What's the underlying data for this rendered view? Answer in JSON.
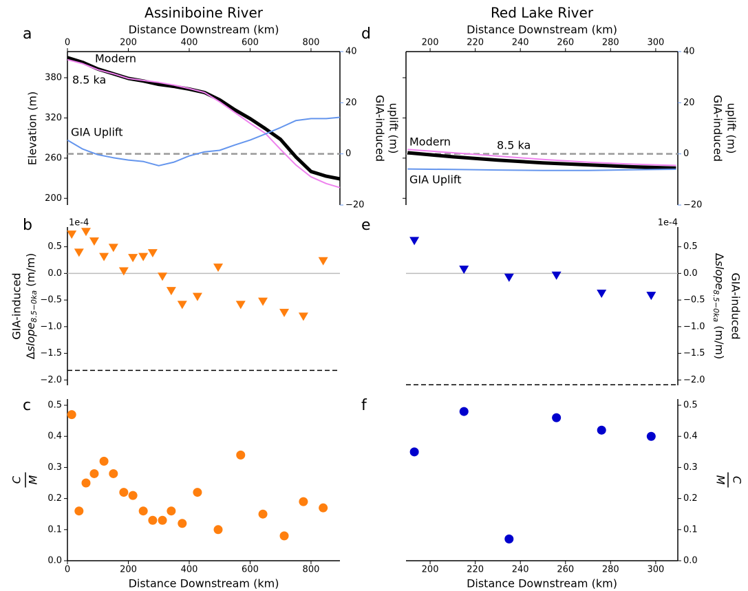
{
  "chart_data": [
    {
      "type": "line",
      "panel": "a",
      "title": "Assiniboine River",
      "xaxis": "top",
      "yaxis_side": "left",
      "xlabel": "Distance Downstream (km)",
      "xlim": [
        0,
        895
      ],
      "xticks": [
        0,
        200,
        400,
        600,
        800
      ],
      "ylabel": "Elevation (m)",
      "ylim": [
        190,
        419
      ],
      "yticks": [
        200,
        260,
        320,
        380
      ],
      "y2label": [
        "GIA-induced",
        "uplift (m)"
      ],
      "y2lim": [
        -20,
        40
      ],
      "y2ticks": [
        {
          "value": -20,
          "label": "−20"
        },
        0,
        20,
        40
      ],
      "y2color": "#6495ed",
      "y2_reference": 0,
      "x": [
        0,
        50,
        100,
        150,
        200,
        250,
        300,
        350,
        400,
        450,
        500,
        550,
        600,
        650,
        700,
        750,
        800,
        850,
        895
      ],
      "series": [
        {
          "name": "Modern",
          "color": "#000000",
          "values": [
            410,
            403,
            393,
            386,
            379,
            375,
            370,
            367,
            363,
            358,
            347,
            332,
            319,
            304,
            288,
            262,
            240,
            233,
            229
          ]
        },
        {
          "name": "8.5 ka",
          "color": "#ee82ee",
          "values": [
            407,
            401,
            392,
            386,
            379,
            376,
            373,
            369,
            364,
            358,
            344,
            328,
            312,
            297,
            273,
            250,
            232,
            222,
            216
          ]
        },
        {
          "name": "GIA Uplift",
          "color": "#6495ed",
          "axis": "y2",
          "values": [
            5.4,
            1.9,
            -0.3,
            -1.5,
            -2.4,
            -3,
            -4.6,
            -3.2,
            -0.8,
            0.8,
            1.4,
            3.5,
            5.4,
            7.8,
            10.3,
            13,
            13.8,
            13.8,
            14.3
          ]
        }
      ]
    },
    {
      "type": "scatter",
      "panel": "b",
      "marker": "triangle-down",
      "color": "#ff7f0e",
      "yaxis_side": "left",
      "xlim": [
        0,
        895
      ],
      "ylim": [
        -2.1,
        0.87
      ],
      "offset_label": "1e-4",
      "yticks": [
        {
          "value": -2,
          "label": "−2.0"
        },
        {
          "value": -1.5,
          "label": "−1.5"
        },
        {
          "value": -1,
          "label": "−1.0"
        },
        {
          "value": -0.5,
          "label": "−0.5"
        },
        {
          "value": 0,
          "label": "0.0"
        },
        0.5
      ],
      "ylabel": {
        "line1": "GIA-induced",
        "delta": "Δ",
        "variable": "slope",
        "subscript": "8.5−0ka",
        "unit": "(m/m)"
      },
      "zero_line": 0,
      "threshold": -1.82,
      "x": [
        14,
        38,
        61,
        88,
        120,
        151,
        185,
        215,
        249,
        280,
        312,
        341,
        377,
        427,
        495,
        569,
        642,
        712,
        775,
        840
      ],
      "values": [
        0.74,
        0.4,
        0.79,
        0.61,
        0.32,
        0.49,
        0.05,
        0.3,
        0.32,
        0.39,
        -0.05,
        -0.32,
        -0.58,
        -0.43,
        0.12,
        -0.58,
        -0.52,
        -0.73,
        -0.8,
        0.24
      ]
    },
    {
      "type": "scatter",
      "panel": "c",
      "marker": "circle",
      "color": "#ff7f0e",
      "xaxis": "bottom",
      "yaxis_side": "left",
      "xlabel": "Distance Downstream (km)",
      "xlim": [
        0,
        895
      ],
      "xticks": [
        0,
        200,
        400,
        600,
        800
      ],
      "ylim": [
        0,
        0.52
      ],
      "yticks": [
        {
          "value": 0,
          "label": "0.0"
        },
        0.1,
        0.2,
        0.3,
        0.4,
        0.5
      ],
      "ylabel": {
        "numerator": "C",
        "denominator": "M"
      },
      "x": [
        14,
        38,
        61,
        88,
        120,
        151,
        185,
        215,
        249,
        280,
        312,
        341,
        377,
        427,
        495,
        569,
        642,
        712,
        775,
        840
      ],
      "values": [
        0.47,
        0.16,
        0.25,
        0.28,
        0.32,
        0.28,
        0.22,
        0.21,
        0.16,
        0.13,
        0.13,
        0.16,
        0.12,
        0.22,
        0.1,
        0.34,
        0.15,
        0.08,
        0.19,
        0.17
      ]
    },
    {
      "type": "line",
      "panel": "d",
      "title": "Red Lake River",
      "xaxis": "top",
      "yaxis_side": "left",
      "ytick_labels": false,
      "xlabel": "Distance Downstream (km)",
      "xlim": [
        189.3,
        309.8
      ],
      "xticks": [
        200,
        220,
        240,
        260,
        280,
        300
      ],
      "ylim": [
        190,
        419
      ],
      "yticks": [
        200,
        260,
        320,
        380
      ],
      "y2label": [
        "GIA-induced",
        "uplift (m)"
      ],
      "y2lim": [
        -20,
        40
      ],
      "y2ticks": [
        {
          "value": -20,
          "label": "−20"
        },
        0,
        20,
        40
      ],
      "y2color": "#6495ed",
      "y2_reference": 0,
      "x": [
        190,
        210,
        230,
        250,
        270,
        290,
        309
      ],
      "series": [
        {
          "name": "Modern",
          "color": "#000000",
          "values": [
            268,
            262,
            257,
            253,
            250,
            247,
            245
          ]
        },
        {
          "name": "8.5 ka",
          "color": "#ee82ee",
          "values": [
            273,
            268,
            263,
            258,
            254,
            251,
            249
          ]
        },
        {
          "name": "GIA Uplift",
          "color": "#6495ed",
          "axis": "y2",
          "values": [
            -5.9,
            -6.1,
            -6.3,
            -6.5,
            -6.5,
            -6.2,
            -6.0
          ]
        }
      ]
    },
    {
      "type": "scatter",
      "panel": "e",
      "marker": "triangle-down",
      "color": "#0000cd",
      "yaxis_side": "right",
      "xlim": [
        189.3,
        309.8
      ],
      "ylim": [
        -2.1,
        0.87
      ],
      "offset_label": "1e-4",
      "yticks": [
        {
          "value": -2,
          "label": "−2.0"
        },
        {
          "value": -1.5,
          "label": "−1.5"
        },
        {
          "value": -1,
          "label": "−1.0"
        },
        {
          "value": -0.5,
          "label": "−0.5"
        },
        {
          "value": 0,
          "label": "0.0"
        },
        0.5
      ],
      "ylabel": {
        "line1": "GIA-induced",
        "delta": "Δ",
        "variable": "slope",
        "subscript": "8.5−0ka",
        "unit": "(m/m)"
      },
      "zero_line": 0,
      "threshold": -2.09,
      "x": [
        193,
        215,
        235,
        256,
        276,
        298
      ],
      "values": [
        0.62,
        0.08,
        -0.07,
        -0.03,
        -0.37,
        -0.41
      ]
    },
    {
      "type": "scatter",
      "panel": "f",
      "marker": "circle",
      "color": "#0000cd",
      "xaxis": "bottom",
      "yaxis_side": "right",
      "xlabel": "Distance Downstream (km)",
      "xlim": [
        189.3,
        309.8
      ],
      "xticks": [
        200,
        220,
        240,
        260,
        280,
        300
      ],
      "ylim": [
        0,
        0.52
      ],
      "yticks": [
        {
          "value": 0,
          "label": "0.0"
        },
        0.1,
        0.2,
        0.3,
        0.4,
        0.5
      ],
      "ylabel": {
        "numerator": "C",
        "denominator": "M"
      },
      "x": [
        193,
        215,
        235,
        256,
        276,
        298
      ],
      "values": [
        0.35,
        0.48,
        0.07,
        0.46,
        0.42,
        0.4
      ]
    }
  ]
}
